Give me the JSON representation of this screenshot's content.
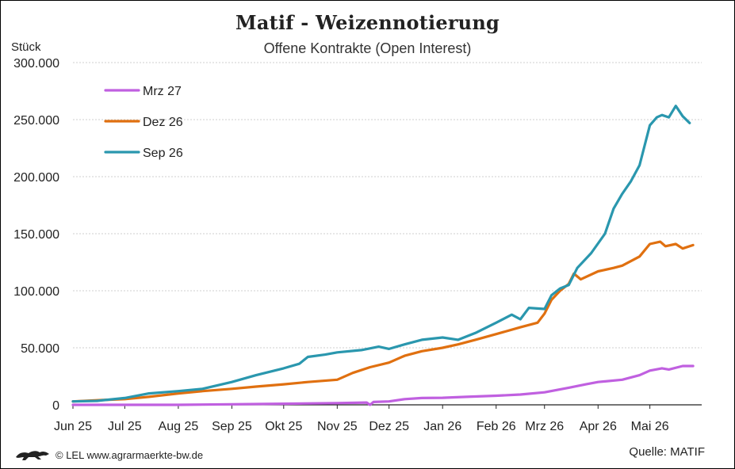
{
  "title": "Matif - Weizennotierung",
  "subtitle": "Offene Kontrakte (Open Interest)",
  "footer": {
    "credit": "© LEL www.agrarmaerkte-bw.de",
    "source": "Quelle:  MATIF"
  },
  "chart_data": {
    "type": "line",
    "title": "Matif - Weizennotierung",
    "subtitle": "Offene Kontrakte (Open Interest)",
    "ylabel": "Stück",
    "ylim": [
      0,
      300000
    ],
    "yticks": [
      0,
      50000,
      100000,
      150000,
      200000,
      250000,
      300000
    ],
    "ytick_labels": [
      "0",
      "50.000",
      "100.000",
      "150.000",
      "200.000",
      "250.000",
      "300.000"
    ],
    "xticks": [
      "2025-06-01",
      "2025-07-01",
      "2025-08-01",
      "2025-09-01",
      "2025-10-01",
      "2025-11-01",
      "2025-12-01",
      "2026-01-01",
      "2026-02-01",
      "2026-03-01",
      "2026-04-01",
      "2026-05-01"
    ],
    "xtick_labels": [
      "Jun 25",
      "Jul 25",
      "Aug 25",
      "Sep 25",
      "Okt 25",
      "Nov 25",
      "Dez 25",
      "Jan 26",
      "Feb 26",
      "Mrz 26",
      "Apr 26",
      "Mai 26"
    ],
    "xlim": [
      "2025-06-01",
      "2026-05-31"
    ],
    "grid": true,
    "legend_position": "top-left",
    "series": [
      {
        "name": "Mrz 27",
        "color": "#c060e0",
        "points": [
          [
            "2025-06-01",
            0
          ],
          [
            "2025-07-01",
            0
          ],
          [
            "2025-08-01",
            0
          ],
          [
            "2025-09-01",
            500
          ],
          [
            "2025-10-01",
            1000
          ],
          [
            "2025-11-01",
            1500
          ],
          [
            "2025-11-18",
            2000
          ],
          [
            "2025-11-20",
            0
          ],
          [
            "2025-11-22",
            2500
          ],
          [
            "2025-12-01",
            3000
          ],
          [
            "2025-12-10",
            5000
          ],
          [
            "2025-12-20",
            6000
          ],
          [
            "2026-01-01",
            6200
          ],
          [
            "2026-01-15",
            7000
          ],
          [
            "2026-02-01",
            8000
          ],
          [
            "2026-02-15",
            9000
          ],
          [
            "2026-03-01",
            11000
          ],
          [
            "2026-03-15",
            15000
          ],
          [
            "2026-03-25",
            18000
          ],
          [
            "2026-04-01",
            20000
          ],
          [
            "2026-04-15",
            22000
          ],
          [
            "2026-04-25",
            26000
          ],
          [
            "2026-05-01",
            30000
          ],
          [
            "2026-05-08",
            32000
          ],
          [
            "2026-05-12",
            31000
          ],
          [
            "2026-05-20",
            34000
          ],
          [
            "2026-05-26",
            34000
          ]
        ]
      },
      {
        "name": "Dez 26",
        "color": "#e07010",
        "points": [
          [
            "2025-06-01",
            3000
          ],
          [
            "2025-06-15",
            4000
          ],
          [
            "2025-07-01",
            5000
          ],
          [
            "2025-07-15",
            7000
          ],
          [
            "2025-08-01",
            10000
          ],
          [
            "2025-08-15",
            12000
          ],
          [
            "2025-09-01",
            14000
          ],
          [
            "2025-09-15",
            16000
          ],
          [
            "2025-10-01",
            18000
          ],
          [
            "2025-10-15",
            20000
          ],
          [
            "2025-11-01",
            22000
          ],
          [
            "2025-11-10",
            28000
          ],
          [
            "2025-11-20",
            33000
          ],
          [
            "2025-12-01",
            37000
          ],
          [
            "2025-12-10",
            43000
          ],
          [
            "2025-12-20",
            47000
          ],
          [
            "2026-01-01",
            50000
          ],
          [
            "2026-01-10",
            53000
          ],
          [
            "2026-01-20",
            57000
          ],
          [
            "2026-02-01",
            62000
          ],
          [
            "2026-02-15",
            68000
          ],
          [
            "2026-02-25",
            72000
          ],
          [
            "2026-03-01",
            80000
          ],
          [
            "2026-03-05",
            92000
          ],
          [
            "2026-03-10",
            100000
          ],
          [
            "2026-03-15",
            106000
          ],
          [
            "2026-03-18",
            115000
          ],
          [
            "2026-03-22",
            110000
          ],
          [
            "2026-04-01",
            117000
          ],
          [
            "2026-04-10",
            120000
          ],
          [
            "2026-04-15",
            122000
          ],
          [
            "2026-04-25",
            130000
          ],
          [
            "2026-05-01",
            141000
          ],
          [
            "2026-05-07",
            143000
          ],
          [
            "2026-05-10",
            139000
          ],
          [
            "2026-05-16",
            141000
          ],
          [
            "2026-05-20",
            137000
          ],
          [
            "2026-05-26",
            140000
          ]
        ]
      },
      {
        "name": "Sep 26",
        "color": "#2a97ae",
        "points": [
          [
            "2025-06-01",
            3000
          ],
          [
            "2025-06-15",
            3500
          ],
          [
            "2025-07-01",
            6000
          ],
          [
            "2025-07-15",
            10000
          ],
          [
            "2025-08-01",
            12000
          ],
          [
            "2025-08-15",
            14000
          ],
          [
            "2025-09-01",
            20000
          ],
          [
            "2025-09-15",
            26000
          ],
          [
            "2025-10-01",
            32000
          ],
          [
            "2025-10-10",
            36000
          ],
          [
            "2025-10-15",
            42000
          ],
          [
            "2025-10-25",
            44000
          ],
          [
            "2025-11-01",
            46000
          ],
          [
            "2025-11-15",
            48000
          ],
          [
            "2025-11-25",
            51000
          ],
          [
            "2025-12-01",
            49000
          ],
          [
            "2025-12-10",
            53000
          ],
          [
            "2025-12-20",
            57000
          ],
          [
            "2026-01-01",
            59000
          ],
          [
            "2026-01-10",
            57000
          ],
          [
            "2026-01-20",
            63000
          ],
          [
            "2026-02-01",
            72000
          ],
          [
            "2026-02-10",
            79000
          ],
          [
            "2026-02-15",
            75000
          ],
          [
            "2026-02-20",
            85000
          ],
          [
            "2026-03-01",
            84000
          ],
          [
            "2026-03-05",
            96000
          ],
          [
            "2026-03-10",
            102000
          ],
          [
            "2026-03-15",
            105000
          ],
          [
            "2026-03-20",
            120000
          ],
          [
            "2026-03-28",
            133000
          ],
          [
            "2026-04-05",
            150000
          ],
          [
            "2026-04-10",
            172000
          ],
          [
            "2026-04-15",
            185000
          ],
          [
            "2026-04-20",
            196000
          ],
          [
            "2026-04-25",
            210000
          ],
          [
            "2026-05-01",
            245000
          ],
          [
            "2026-05-05",
            252000
          ],
          [
            "2026-05-08",
            254000
          ],
          [
            "2026-05-12",
            252000
          ],
          [
            "2026-05-16",
            262000
          ],
          [
            "2026-05-20",
            253000
          ],
          [
            "2026-05-24",
            247000
          ]
        ]
      }
    ]
  }
}
